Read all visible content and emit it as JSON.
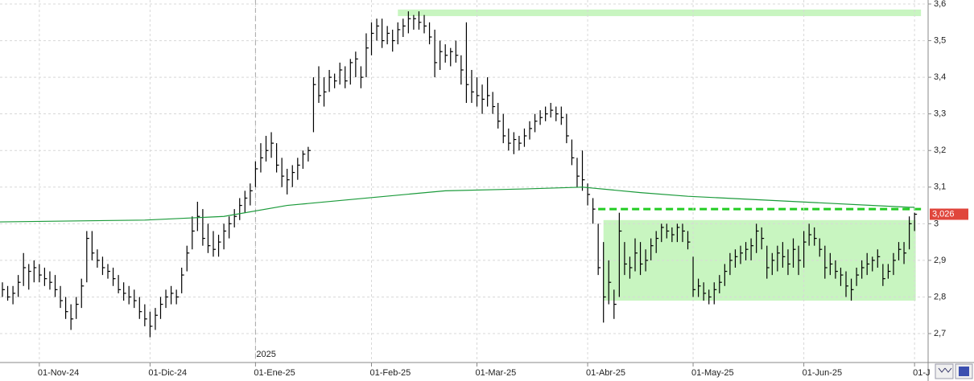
{
  "chart_data": {
    "type": "ohlc",
    "x": [
      "2024-10-23",
      "2024-10-24",
      "2024-10-25",
      "2024-10-28",
      "2024-10-29",
      "2024-10-30",
      "2024-10-31",
      "2024-11-01",
      "2024-11-04",
      "2024-11-05",
      "2024-11-06",
      "2024-11-07",
      "2024-11-08",
      "2024-11-11",
      "2024-11-12",
      "2024-11-13",
      "2024-11-14",
      "2024-11-15",
      "2024-11-18",
      "2024-11-19",
      "2024-11-20",
      "2024-11-21",
      "2024-11-22",
      "2024-11-25",
      "2024-11-26",
      "2024-11-27",
      "2024-11-28",
      "2024-11-29",
      "2024-12-02",
      "2024-12-03",
      "2024-12-04",
      "2024-12-05",
      "2024-12-06",
      "2024-12-09",
      "2024-12-10",
      "2024-12-11",
      "2024-12-12",
      "2024-12-13",
      "2024-12-16",
      "2024-12-17",
      "2024-12-18",
      "2024-12-19",
      "2024-12-20",
      "2024-12-23",
      "2024-12-24",
      "2024-12-27",
      "2024-12-30",
      "2024-12-31",
      "2025-01-02",
      "2025-01-03",
      "2025-01-06",
      "2025-01-07",
      "2025-01-08",
      "2025-01-09",
      "2025-01-10",
      "2025-01-13",
      "2025-01-14",
      "2025-01-15",
      "2025-01-16",
      "2025-01-17",
      "2025-01-20",
      "2025-01-21",
      "2025-01-22",
      "2025-01-23",
      "2025-01-24",
      "2025-01-27",
      "2025-01-28",
      "2025-01-29",
      "2025-01-30",
      "2025-01-31",
      "2025-02-03",
      "2025-02-04",
      "2025-02-05",
      "2025-02-06",
      "2025-02-07",
      "2025-02-10",
      "2025-02-11",
      "2025-02-12",
      "2025-02-13",
      "2025-02-14",
      "2025-02-17",
      "2025-02-18",
      "2025-02-19",
      "2025-02-20",
      "2025-02-21",
      "2025-02-24",
      "2025-02-25",
      "2025-02-26",
      "2025-02-27",
      "2025-02-28",
      "2025-03-03",
      "2025-03-04",
      "2025-03-05",
      "2025-03-06",
      "2025-03-07",
      "2025-03-10",
      "2025-03-11",
      "2025-03-12",
      "2025-03-13",
      "2025-03-14",
      "2025-03-17",
      "2025-03-18",
      "2025-03-19",
      "2025-03-20",
      "2025-03-21",
      "2025-03-24",
      "2025-03-25",
      "2025-03-26",
      "2025-03-27",
      "2025-03-28",
      "2025-03-31",
      "2025-04-01",
      "2025-04-02",
      "2025-04-03",
      "2025-04-04",
      "2025-04-07",
      "2025-04-08",
      "2025-04-09",
      "2025-04-10",
      "2025-04-11",
      "2025-04-14",
      "2025-04-15",
      "2025-04-16",
      "2025-04-17",
      "2025-04-22",
      "2025-04-23",
      "2025-04-24",
      "2025-04-25",
      "2025-04-28",
      "2025-04-29",
      "2025-04-30",
      "2025-05-02",
      "2025-05-05",
      "2025-05-06",
      "2025-05-07",
      "2025-05-08",
      "2025-05-09",
      "2025-05-12",
      "2025-05-13",
      "2025-05-14",
      "2025-05-15",
      "2025-05-16",
      "2025-05-19",
      "2025-05-20",
      "2025-05-21",
      "2025-05-22",
      "2025-05-23",
      "2025-05-26",
      "2025-05-27",
      "2025-05-28",
      "2025-05-29",
      "2025-05-30",
      "2025-06-02",
      "2025-06-03",
      "2025-06-04",
      "2025-06-05",
      "2025-06-06",
      "2025-06-09",
      "2025-06-10",
      "2025-06-11",
      "2025-06-12",
      "2025-06-13",
      "2025-06-16",
      "2025-06-17",
      "2025-06-18",
      "2025-06-19",
      "2025-06-20",
      "2025-06-23",
      "2025-06-24",
      "2025-06-25",
      "2025-06-26",
      "2025-06-27",
      "2025-06-30",
      "2025-07-01"
    ],
    "series": [
      {
        "color": "#000000",
        "high": [
          2.84,
          2.83,
          2.83,
          2.86,
          2.92,
          2.89,
          2.9,
          2.89,
          2.88,
          2.87,
          2.86,
          2.83,
          2.8,
          2.78,
          2.8,
          2.85,
          2.98,
          2.98,
          2.93,
          2.91,
          2.89,
          2.88,
          2.86,
          2.84,
          2.83,
          2.82,
          2.8,
          2.78,
          2.76,
          2.77,
          2.8,
          2.82,
          2.83,
          2.82,
          2.88,
          2.94,
          3.02,
          3.06,
          3.04,
          3.0,
          2.98,
          2.97,
          3.0,
          3.02,
          3.04,
          3.07,
          3.09,
          3.11,
          3.17,
          3.22,
          3.24,
          3.25,
          3.22,
          3.18,
          3.15,
          3.16,
          3.18,
          3.2,
          3.21,
          3.4,
          3.43,
          3.4,
          3.42,
          3.41,
          3.44,
          3.43,
          3.45,
          3.47,
          3.43,
          3.52,
          3.55,
          3.56,
          3.56,
          3.54,
          3.53,
          3.55,
          3.56,
          3.58,
          3.57,
          3.58,
          3.57,
          3.55,
          3.53,
          3.5,
          3.49,
          3.48,
          3.5,
          3.46,
          3.55,
          3.42,
          3.4,
          3.38,
          3.4,
          3.36,
          3.33,
          3.3,
          3.26,
          3.25,
          3.24,
          3.26,
          3.28,
          3.3,
          3.31,
          3.32,
          3.33,
          3.32,
          3.32,
          3.3,
          3.23,
          3.18,
          3.2,
          3.11,
          3.07,
          3.0,
          2.95,
          2.9,
          2.82,
          3.03,
          2.95,
          2.91,
          2.96,
          2.95,
          2.93,
          2.96,
          2.98,
          3.0,
          3.0,
          2.99,
          3.0,
          3.0,
          2.98,
          2.91,
          2.85,
          2.84,
          2.82,
          2.84,
          2.86,
          2.89,
          2.92,
          2.93,
          2.94,
          2.95,
          2.96,
          3.0,
          2.99,
          2.94,
          2.92,
          2.94,
          2.95,
          2.93,
          2.96,
          2.94,
          2.98,
          3.0,
          2.99,
          2.96,
          2.94,
          2.92,
          2.9,
          2.88,
          2.87,
          2.85,
          2.88,
          2.9,
          2.92,
          2.91,
          2.93,
          2.89,
          2.89,
          2.92,
          2.95,
          2.95,
          3.02,
          3.03
        ],
        "low": [
          2.8,
          2.79,
          2.78,
          2.8,
          2.83,
          2.82,
          2.84,
          2.84,
          2.83,
          2.82,
          2.8,
          2.77,
          2.74,
          2.71,
          2.74,
          2.77,
          2.84,
          2.9,
          2.88,
          2.86,
          2.85,
          2.83,
          2.81,
          2.79,
          2.78,
          2.77,
          2.74,
          2.72,
          2.69,
          2.71,
          2.74,
          2.77,
          2.78,
          2.78,
          2.81,
          2.87,
          2.93,
          2.98,
          2.94,
          2.92,
          2.91,
          2.91,
          2.93,
          2.96,
          2.99,
          3.01,
          3.03,
          3.05,
          3.1,
          3.14,
          3.17,
          3.18,
          3.14,
          3.1,
          3.08,
          3.1,
          3.12,
          3.15,
          3.17,
          3.25,
          3.33,
          3.32,
          3.36,
          3.37,
          3.38,
          3.37,
          3.38,
          3.4,
          3.37,
          3.4,
          3.46,
          3.5,
          3.48,
          3.49,
          3.47,
          3.49,
          3.51,
          3.52,
          3.53,
          3.53,
          3.52,
          3.49,
          3.4,
          3.42,
          3.44,
          3.43,
          3.44,
          3.38,
          3.33,
          3.33,
          3.32,
          3.3,
          3.32,
          3.3,
          3.26,
          3.22,
          3.2,
          3.19,
          3.2,
          3.21,
          3.23,
          3.25,
          3.27,
          3.28,
          3.29,
          3.28,
          3.27,
          3.22,
          3.16,
          3.1,
          3.09,
          3.05,
          3.0,
          2.86,
          2.73,
          2.78,
          2.74,
          2.8,
          2.86,
          2.85,
          2.87,
          2.86,
          2.87,
          2.9,
          2.92,
          2.95,
          2.96,
          2.95,
          2.95,
          2.95,
          2.93,
          2.8,
          2.8,
          2.79,
          2.78,
          2.78,
          2.81,
          2.83,
          2.86,
          2.88,
          2.89,
          2.9,
          2.9,
          2.92,
          2.93,
          2.85,
          2.86,
          2.87,
          2.88,
          2.86,
          2.88,
          2.86,
          2.88,
          2.94,
          2.94,
          2.91,
          2.85,
          2.86,
          2.85,
          2.83,
          2.8,
          2.79,
          2.83,
          2.85,
          2.86,
          2.87,
          2.88,
          2.83,
          2.85,
          2.86,
          2.9,
          2.89,
          2.93,
          2.98
        ],
        "close": [
          2.82,
          2.8,
          2.81,
          2.84,
          2.88,
          2.87,
          2.88,
          2.86,
          2.85,
          2.84,
          2.82,
          2.79,
          2.76,
          2.74,
          2.78,
          2.83,
          2.96,
          2.92,
          2.9,
          2.88,
          2.87,
          2.85,
          2.82,
          2.81,
          2.8,
          2.79,
          2.76,
          2.74,
          2.72,
          2.75,
          2.78,
          2.8,
          2.81,
          2.8,
          2.86,
          2.92,
          2.98,
          3.02,
          2.96,
          2.94,
          2.93,
          2.95,
          2.98,
          3.0,
          3.02,
          3.05,
          3.07,
          3.09,
          3.15,
          3.18,
          3.2,
          3.22,
          3.16,
          3.13,
          3.12,
          3.14,
          3.16,
          3.19,
          3.2,
          3.38,
          3.35,
          3.36,
          3.4,
          3.39,
          3.42,
          3.39,
          3.44,
          3.45,
          3.4,
          3.48,
          3.52,
          3.54,
          3.5,
          3.52,
          3.5,
          3.53,
          3.54,
          3.56,
          3.56,
          3.55,
          3.54,
          3.51,
          3.44,
          3.47,
          3.46,
          3.47,
          3.46,
          3.42,
          3.38,
          3.36,
          3.35,
          3.34,
          3.35,
          3.32,
          3.28,
          3.24,
          3.22,
          3.23,
          3.22,
          3.24,
          3.26,
          3.28,
          3.29,
          3.3,
          3.31,
          3.3,
          3.29,
          3.24,
          3.18,
          3.13,
          3.12,
          3.08,
          3.04,
          2.88,
          2.8,
          2.84,
          2.78,
          2.98,
          2.89,
          2.88,
          2.92,
          2.89,
          2.9,
          2.94,
          2.96,
          2.99,
          2.98,
          2.97,
          2.99,
          2.98,
          2.95,
          2.82,
          2.83,
          2.81,
          2.8,
          2.82,
          2.84,
          2.87,
          2.9,
          2.91,
          2.92,
          2.93,
          2.94,
          2.98,
          2.96,
          2.88,
          2.9,
          2.92,
          2.91,
          2.89,
          2.93,
          2.9,
          2.95,
          2.97,
          2.96,
          2.93,
          2.88,
          2.89,
          2.87,
          2.86,
          2.83,
          2.82,
          2.86,
          2.88,
          2.89,
          2.9,
          2.91,
          2.85,
          2.87,
          2.9,
          2.93,
          2.92,
          3.0,
          3.026
        ]
      },
      {
        "color": "#1a9a3a",
        "x": [
          "2024-10-23",
          "2024-11-29",
          "2024-12-20",
          "2025-01-10",
          "2025-01-31",
          "2025-02-21",
          "2025-03-14",
          "2025-03-31",
          "2025-04-15",
          "2025-04-30",
          "2025-05-30",
          "2025-06-30",
          "2025-07-01"
        ],
        "values": [
          3.005,
          3.01,
          3.02,
          3.05,
          3.07,
          3.09,
          3.095,
          3.1,
          3.085,
          3.075,
          3.06,
          3.045,
          3.045
        ]
      }
    ],
    "annotations": [
      {
        "type": "band",
        "color": "#c8f5c0",
        "x0": "2025-02-10",
        "x1": "2025-07-01",
        "y0": 3.567,
        "y1": 3.585
      },
      {
        "type": "band",
        "color": "#c8f5c0",
        "x0": "2025-04-04",
        "x1": "2025-06-30",
        "y0": 2.79,
        "y1": 3.01
      },
      {
        "type": "dashed",
        "color": "#22cc22",
        "x0": "2025-04-03",
        "x1": "2025-07-01",
        "y0": 3.04
      }
    ],
    "ylim": [
      2.621,
      3.611
    ],
    "yticks": [
      {
        "value": 2.7,
        "label": "2,7"
      },
      {
        "value": 2.8,
        "label": "2,8"
      },
      {
        "value": 2.9,
        "label": "2,9"
      },
      3,
      {
        "value": 3.1,
        "label": "3,1"
      },
      {
        "value": 3.2,
        "label": "3,2"
      },
      {
        "value": 3.3,
        "label": "3,3"
      },
      {
        "value": 3.4,
        "label": "3,4"
      },
      {
        "value": 3.5,
        "label": "3,5"
      },
      {
        "value": 3.6,
        "label": "3,6"
      }
    ],
    "xticks": [
      {
        "value": "2024-11-01",
        "label": "01-Nov-24"
      },
      {
        "value": "2024-12-02",
        "label": "01-Dic-24"
      },
      {
        "value": "2025-01-02",
        "label": "01-Ene-25"
      },
      {
        "value": "2025-02-03",
        "label": "01-Feb-25"
      },
      {
        "value": "2025-03-03",
        "label": "01-Mar-25"
      },
      {
        "value": "2025-04-01",
        "label": "01-Abr-25"
      },
      {
        "value": "2025-05-02",
        "label": "01-May-25"
      },
      {
        "value": "2025-06-02",
        "label": "01-Jun-25"
      },
      {
        "value": "2025-07-01",
        "label": "01-J"
      }
    ],
    "year_marker": {
      "x": "2025-01-02",
      "label": "2025"
    },
    "last_price": {
      "value": 3.026,
      "label": "3,026",
      "color": "#e0463c"
    },
    "grid": true
  }
}
